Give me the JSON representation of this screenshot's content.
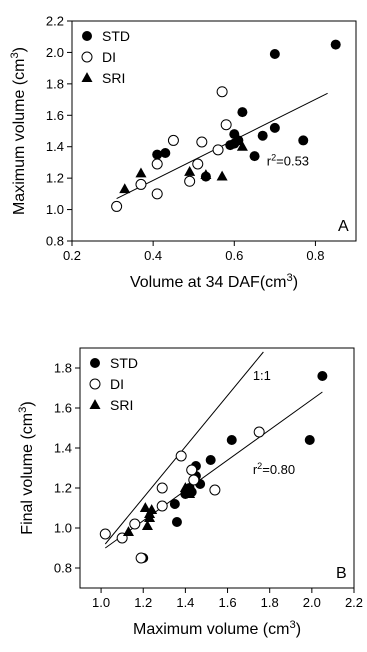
{
  "chart_data": [
    {
      "type": "scatter",
      "panel_label": "A",
      "xlabel": "Volume at 34 DAF(cm",
      "xlabel_sup": "3",
      "xlabel_tail": ")",
      "ylabel": "Maximum volume (cm",
      "ylabel_sup": "3",
      "ylabel_tail": ")",
      "xlim": [
        0.2,
        0.9
      ],
      "ylim": [
        0.8,
        2.2
      ],
      "xticks": [
        "0.2",
        "0.4",
        "0.6",
        "0.8"
      ],
      "xtick_values": [
        0.2,
        0.4,
        0.6,
        0.8
      ],
      "yticks": [
        "0.8",
        "1.0",
        "1.2",
        "1.4",
        "1.6",
        "1.8",
        "2.0",
        "2.2"
      ],
      "ytick_values": [
        0.8,
        1.0,
        1.2,
        1.4,
        1.6,
        1.8,
        2.0,
        2.2
      ],
      "legend_position": "top-left",
      "annotation": {
        "text": "r",
        "sup": "2",
        "tail": "=0.53",
        "x": 0.68,
        "y": 1.28
      },
      "series": [
        {
          "name": "STD",
          "marker": "filled-circle",
          "points": [
            [
              0.41,
              1.35
            ],
            [
              0.43,
              1.36
            ],
            [
              0.53,
              1.21
            ],
            [
              0.59,
              1.41
            ],
            [
              0.6,
              1.48
            ],
            [
              0.6,
              1.42
            ],
            [
              0.61,
              1.44
            ],
            [
              0.62,
              1.62
            ],
            [
              0.65,
              1.34
            ],
            [
              0.67,
              1.47
            ],
            [
              0.7,
              1.52
            ],
            [
              0.7,
              1.99
            ],
            [
              0.77,
              1.44
            ],
            [
              0.85,
              2.05
            ]
          ]
        },
        {
          "name": "DI",
          "marker": "open-circle",
          "points": [
            [
              0.31,
              1.02
            ],
            [
              0.37,
              1.16
            ],
            [
              0.41,
              1.29
            ],
            [
              0.41,
              1.1
            ],
            [
              0.45,
              1.44
            ],
            [
              0.49,
              1.18
            ],
            [
              0.51,
              1.29
            ],
            [
              0.52,
              1.43
            ],
            [
              0.56,
              1.38
            ],
            [
              0.57,
              1.75
            ],
            [
              0.58,
              1.54
            ]
          ]
        },
        {
          "name": "SRI",
          "marker": "filled-triangle",
          "points": [
            [
              0.33,
              1.13
            ],
            [
              0.37,
              1.23
            ],
            [
              0.49,
              1.24
            ],
            [
              0.53,
              1.22
            ],
            [
              0.57,
              1.21
            ],
            [
              0.62,
              1.4
            ]
          ]
        }
      ],
      "regression": [
        [
          0.31,
          1.07
        ],
        [
          0.83,
          1.74
        ]
      ]
    },
    {
      "type": "scatter",
      "panel_label": "B",
      "xlabel": "Maximum volume (cm",
      "xlabel_sup": "3",
      "xlabel_tail": ")",
      "ylabel": "Final volume (cm",
      "ylabel_sup": "3",
      "ylabel_tail": ")",
      "xlim": [
        0.9,
        2.2
      ],
      "ylim": [
        0.7,
        1.9
      ],
      "xticks": [
        "1.0",
        "1.2",
        "1.4",
        "1.6",
        "1.8",
        "2.0",
        "2.2"
      ],
      "xtick_values": [
        1.0,
        1.2,
        1.4,
        1.6,
        1.8,
        2.0,
        2.2
      ],
      "yticks": [
        "0.8",
        "1.0",
        "1.2",
        "1.4",
        "1.6",
        "1.8"
      ],
      "ytick_values": [
        0.8,
        1.0,
        1.2,
        1.4,
        1.6,
        1.8
      ],
      "legend_position": "top-left",
      "annotation": {
        "text": "r",
        "sup": "2",
        "tail": "=0.80",
        "x": 1.72,
        "y": 1.27
      },
      "line_label": {
        "text": "1:1",
        "x": 1.72,
        "y": 1.74
      },
      "series": [
        {
          "name": "STD",
          "marker": "filled-circle",
          "points": [
            [
              1.2,
              0.85
            ],
            [
              1.35,
              1.12
            ],
            [
              1.36,
              1.03
            ],
            [
              1.4,
              1.17
            ],
            [
              1.42,
              1.2
            ],
            [
              1.43,
              1.18
            ],
            [
              1.45,
              1.26
            ],
            [
              1.45,
              1.31
            ],
            [
              1.47,
              1.22
            ],
            [
              1.52,
              1.34
            ],
            [
              1.62,
              1.44
            ],
            [
              1.99,
              1.44
            ],
            [
              2.05,
              1.76
            ]
          ]
        },
        {
          "name": "DI",
          "marker": "open-circle",
          "points": [
            [
              1.02,
              0.97
            ],
            [
              1.1,
              0.95
            ],
            [
              1.16,
              1.02
            ],
            [
              1.19,
              0.85
            ],
            [
              1.29,
              1.11
            ],
            [
              1.29,
              1.2
            ],
            [
              1.38,
              1.36
            ],
            [
              1.43,
              1.29
            ],
            [
              1.44,
              1.24
            ],
            [
              1.54,
              1.19
            ],
            [
              1.75,
              1.48
            ]
          ]
        },
        {
          "name": "SRI",
          "marker": "filled-triangle",
          "points": [
            [
              1.13,
              0.98
            ],
            [
              1.21,
              1.1
            ],
            [
              1.22,
              1.01
            ],
            [
              1.23,
              1.07
            ],
            [
              1.23,
              1.05
            ],
            [
              1.24,
              1.09
            ],
            [
              1.4,
              1.2
            ],
            [
              1.42,
              1.17
            ]
          ]
        }
      ],
      "one_to_one": [
        [
          1.02,
          0.92
        ],
        [
          1.77,
          1.88
        ]
      ],
      "regression": [
        [
          1.02,
          0.9
        ],
        [
          2.05,
          1.68
        ]
      ]
    }
  ]
}
